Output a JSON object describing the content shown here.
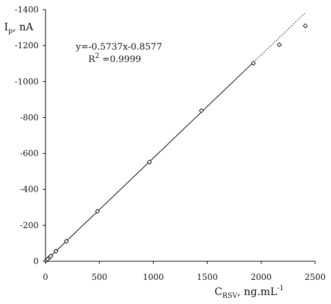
{
  "chart_data": {
    "type": "scatter",
    "title": "",
    "ylabel": {
      "main": "I",
      "sub": "p",
      "rest": ", nA"
    },
    "xlabel": {
      "main": "C",
      "sub": "RSV",
      "rest": ", ng.mL",
      "sup": "-1"
    },
    "xlim": [
      0,
      2500
    ],
    "ylim": [
      0,
      -1400
    ],
    "x_ticks": [
      0,
      500,
      1000,
      1500,
      2000,
      2500
    ],
    "y_ticks": [
      0,
      -200,
      -400,
      -600,
      -800,
      -1000,
      -1200,
      -1400
    ],
    "grid": false,
    "series": [
      {
        "marker": "diamond",
        "x": [
          9.6,
          19.3,
          38.5,
          48.2,
          96.3,
          193,
          482,
          964,
          1445,
          1927,
          2168,
          2409
        ],
        "y": [
          -6.5,
          -12,
          -23,
          -28.5,
          -56,
          -111,
          -278,
          -552,
          -838,
          -1102,
          -1205,
          -1310
        ]
      }
    ],
    "fit": {
      "slope": -0.5737,
      "intercept": -0.8577,
      "x_end": 1927,
      "dotted_x_end": 2409
    },
    "annotations": {
      "equation": "y=-0.5737x-0.8577",
      "r2_prefix": "R",
      "r2_sup": "2",
      "r2_value": " =0.9999"
    }
  }
}
